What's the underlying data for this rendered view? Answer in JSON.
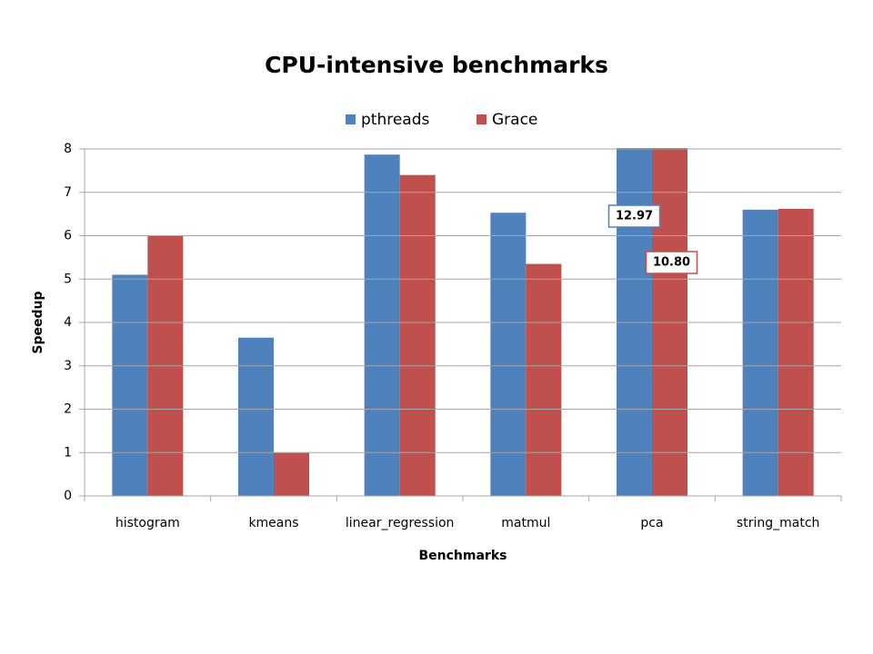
{
  "chart_data": {
    "type": "bar",
    "title": "CPU-intensive benchmarks",
    "xlabel": "Benchmarks",
    "ylabel": "Speedup",
    "categories": [
      "histogram",
      "kmeans",
      "linear_regression",
      "matmul",
      "pca",
      "string_match"
    ],
    "series": [
      {
        "name": "pthreads",
        "color": "#4f81bd",
        "values": [
          5.1,
          3.65,
          7.87,
          6.53,
          12.97,
          6.6
        ],
        "value_labels": [
          null,
          null,
          null,
          null,
          "12.97",
          null
        ]
      },
      {
        "name": "Grace",
        "color": "#c0504d",
        "values": [
          6.0,
          1.0,
          7.4,
          5.35,
          10.8,
          6.62
        ],
        "value_labels": [
          null,
          null,
          null,
          null,
          "10.80",
          null
        ]
      }
    ],
    "ylim": [
      0,
      8
    ],
    "yticks": [
      0,
      1,
      2,
      3,
      4,
      5,
      6,
      7,
      8
    ],
    "grid": true,
    "legend": "top"
  }
}
